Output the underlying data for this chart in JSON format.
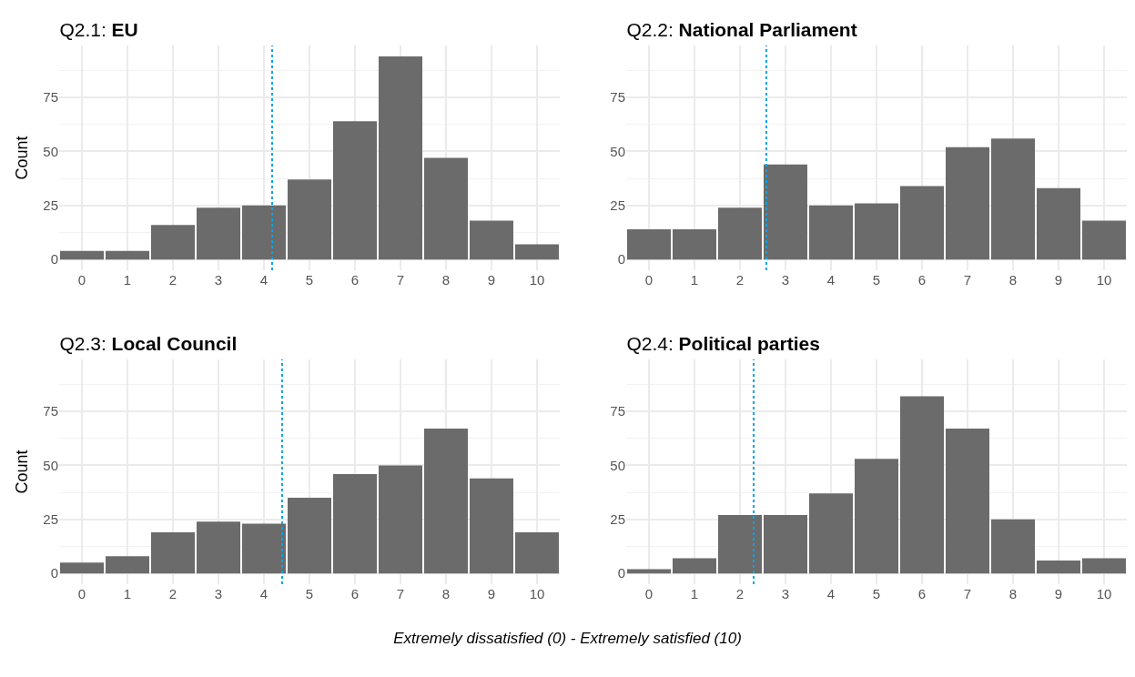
{
  "chart_data": [
    {
      "type": "bar",
      "title": "Q2.1: EU",
      "ylabel": "Count",
      "x": [
        0,
        1,
        2,
        3,
        4,
        5,
        6,
        7,
        8,
        9,
        10
      ],
      "xlim": [
        -0.5,
        10.5
      ],
      "xticks": [
        0,
        1,
        2,
        3,
        4,
        5,
        6,
        7,
        8,
        9,
        10
      ],
      "ylim": [
        -5,
        99
      ],
      "yticks": [
        0,
        25,
        50,
        75
      ],
      "grid": true,
      "color": "#6b6b6b",
      "values": [
        4,
        4,
        16,
        24,
        25,
        37,
        64,
        94,
        47,
        18,
        7
      ],
      "ref_lines": [
        {
          "axis": "x",
          "value": 4.18,
          "color": "#00a5e5",
          "line_style": "dotted"
        }
      ]
    },
    {
      "type": "bar",
      "title": "Q2.2: National Parliament",
      "x": [
        0,
        1,
        2,
        3,
        4,
        5,
        6,
        7,
        8,
        9,
        10
      ],
      "xlim": [
        -0.5,
        10.5
      ],
      "xticks": [
        0,
        1,
        2,
        3,
        4,
        5,
        6,
        7,
        8,
        9,
        10
      ],
      "ylim": [
        -5,
        99
      ],
      "yticks": [
        0,
        25,
        50,
        75
      ],
      "grid": true,
      "color": "#6b6b6b",
      "values": [
        14,
        14,
        24,
        44,
        25,
        26,
        34,
        52,
        56,
        33,
        18
      ],
      "ref_lines": [
        {
          "axis": "x",
          "value": 2.58,
          "color": "#00a5e5",
          "line_style": "dotted"
        }
      ]
    },
    {
      "type": "bar",
      "title": "Q2.3: Local Council",
      "ylabel": "Count",
      "xlabel": "Extremely dissatisfied (0) - Extremely satisfied (10)",
      "x": [
        0,
        1,
        2,
        3,
        4,
        5,
        6,
        7,
        8,
        9,
        10
      ],
      "xlim": [
        -0.5,
        10.5
      ],
      "xticks": [
        0,
        1,
        2,
        3,
        4,
        5,
        6,
        7,
        8,
        9,
        10
      ],
      "ylim": [
        -5,
        99
      ],
      "yticks": [
        0,
        25,
        50,
        75
      ],
      "grid": true,
      "color": "#6b6b6b",
      "values": [
        5,
        8,
        19,
        24,
        23,
        35,
        46,
        50,
        67,
        44,
        19
      ],
      "ref_lines": [
        {
          "axis": "x",
          "value": 4.4,
          "color": "#00a5e5",
          "line_style": "dotted"
        }
      ]
    },
    {
      "type": "bar",
      "title": "Q2.4: Political parties",
      "x": [
        0,
        1,
        2,
        3,
        4,
        5,
        6,
        7,
        8,
        9,
        10
      ],
      "xlim": [
        -0.5,
        10.5
      ],
      "xticks": [
        0,
        1,
        2,
        3,
        4,
        5,
        6,
        7,
        8,
        9,
        10
      ],
      "ylim": [
        -5,
        99
      ],
      "yticks": [
        0,
        25,
        50,
        75
      ],
      "grid": true,
      "color": "#6b6b6b",
      "values": [
        2,
        7,
        27,
        27,
        37,
        53,
        82,
        67,
        25,
        6,
        7
      ],
      "ref_lines": [
        {
          "axis": "x",
          "value": 2.3,
          "color": "#00a5e5",
          "line_style": "dotted"
        }
      ]
    }
  ]
}
